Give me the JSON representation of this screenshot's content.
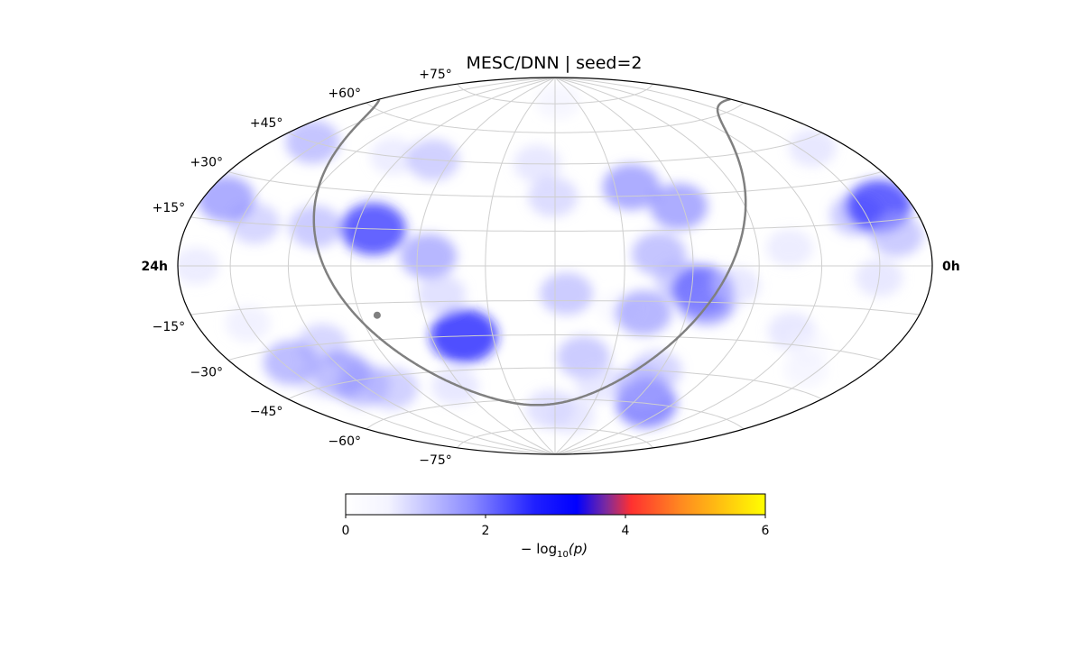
{
  "chart_data": {
    "type": "heatmap",
    "projection": "hammer-aitoff",
    "title": "MESC/DNN | seed=2",
    "ra_labels": {
      "left": "24h",
      "right": "0h"
    },
    "dec_tick_labels": [
      {
        "dec": 75,
        "text": "+75°"
      },
      {
        "dec": 60,
        "text": "+60°"
      },
      {
        "dec": 45,
        "text": "+45°"
      },
      {
        "dec": 30,
        "text": "+30°"
      },
      {
        "dec": 15,
        "text": "+15°"
      },
      {
        "dec": -15,
        "text": "−15°"
      },
      {
        "dec": -30,
        "text": "−30°"
      },
      {
        "dec": -45,
        "text": "−45°"
      },
      {
        "dec": -60,
        "text": "−60°"
      },
      {
        "dec": -75,
        "text": "−75°"
      }
    ],
    "grid": true,
    "colorbar": {
      "label_prefix": "− log",
      "label_sub": "10",
      "label_suffix": "(p)",
      "range": [
        0,
        6
      ],
      "ticks": [
        {
          "value": 0,
          "text": "0"
        },
        {
          "value": 2,
          "text": "2"
        },
        {
          "value": 4,
          "text": "4"
        },
        {
          "value": 6,
          "text": "6"
        }
      ],
      "colors": [
        {
          "at": 0.0,
          "color": "#ffffff"
        },
        {
          "at": 0.1,
          "color": "#f4f4ff"
        },
        {
          "at": 0.3,
          "color": "#8a8aff"
        },
        {
          "at": 0.45,
          "color": "#2020ff"
        },
        {
          "at": 0.55,
          "color": "#0000ff"
        },
        {
          "at": 0.62,
          "color": "#7a2aa0"
        },
        {
          "at": 0.68,
          "color": "#ff3030"
        },
        {
          "at": 0.8,
          "color": "#ff8a20"
        },
        {
          "at": 1.0,
          "color": "#ffff00"
        }
      ]
    },
    "hotspots": [
      {
        "lon": -155,
        "lat": 45,
        "value": 1.6
      },
      {
        "lon": -142,
        "lat": 15,
        "value": 1.3
      },
      {
        "lon": -110,
        "lat": 15,
        "value": 1.5
      },
      {
        "lon": -82,
        "lat": 15,
        "value": 2.6
      },
      {
        "lon": -55,
        "lat": 4,
        "value": 1.8
      },
      {
        "lon": -50,
        "lat": -12,
        "value": 1.1
      },
      {
        "lon": -44,
        "lat": -30,
        "value": 2.8
      },
      {
        "lon": -64,
        "lat": -52,
        "value": 1.0
      },
      {
        "lon": -118,
        "lat": -30,
        "value": 1.3
      },
      {
        "lon": -124,
        "lat": -42,
        "value": 1.9
      },
      {
        "lon": -150,
        "lat": -20,
        "value": 0.8
      },
      {
        "lon": -166,
        "lat": 22,
        "value": 1.9
      },
      {
        "lon": -169,
        "lat": 0,
        "value": 0.9
      },
      {
        "lon": -140,
        "lat": -42,
        "value": 1.0
      },
      {
        "lon": -95,
        "lat": 45,
        "value": 0.9
      },
      {
        "lon": -70,
        "lat": 45,
        "value": 1.4
      },
      {
        "lon": -10,
        "lat": 45,
        "value": 1.0
      },
      {
        "lon": -1,
        "lat": 30,
        "value": 1.2
      },
      {
        "lon": 5,
        "lat": -12,
        "value": 1.5
      },
      {
        "lon": 4,
        "lat": 76,
        "value": 0.7
      },
      {
        "lon": 15,
        "lat": -40,
        "value": 1.5
      },
      {
        "lon": -4,
        "lat": -65,
        "value": 1.1
      },
      {
        "lon": 15,
        "lat": -68,
        "value": 1.0
      },
      {
        "lon": 28,
        "lat": -18,
        "value": 0.6
      },
      {
        "lon": 38,
        "lat": 34,
        "value": 1.9
      },
      {
        "lon": 40,
        "lat": -20,
        "value": 1.8
      },
      {
        "lon": 45,
        "lat": 5,
        "value": 1.6
      },
      {
        "lon": 55,
        "lat": -6,
        "value": 1.4
      },
      {
        "lon": 58,
        "lat": 25,
        "value": 1.9
      },
      {
        "lon": 58,
        "lat": -45,
        "value": 1.3
      },
      {
        "lon": 65,
        "lat": -10,
        "value": 2.3
      },
      {
        "lon": 68,
        "lat": -15,
        "value": 1.9
      },
      {
        "lon": 70,
        "lat": -60,
        "value": 2.2
      },
      {
        "lon": 80,
        "lat": -8,
        "value": 1.0
      },
      {
        "lon": 105,
        "lat": 7,
        "value": 0.9
      },
      {
        "lon": 115,
        "lat": -25,
        "value": 1.0
      },
      {
        "lon": 130,
        "lat": -30,
        "value": 0.6
      },
      {
        "lon": 145,
        "lat": 18,
        "value": 1.5
      },
      {
        "lon": 160,
        "lat": 20,
        "value": 2.6
      },
      {
        "lon": 162,
        "lat": 10,
        "value": 1.5
      },
      {
        "lon": 150,
        "lat": -4,
        "value": 1.0
      },
      {
        "lon": 158,
        "lat": 42,
        "value": 1.0
      },
      {
        "lon": 142,
        "lat": -38,
        "value": 0.7
      },
      {
        "lon": -145,
        "lat": -35,
        "value": 1.7
      },
      {
        "lon": -120,
        "lat": -47,
        "value": 1.6
      },
      {
        "lon": -105,
        "lat": -50,
        "value": 1.4
      },
      {
        "lon": 28,
        "lat": -52,
        "value": 1.0
      },
      {
        "lon": 55,
        "lat": -52,
        "value": 1.5
      }
    ],
    "curve_marker": {
      "lon": -82,
      "lat": -20
    }
  }
}
